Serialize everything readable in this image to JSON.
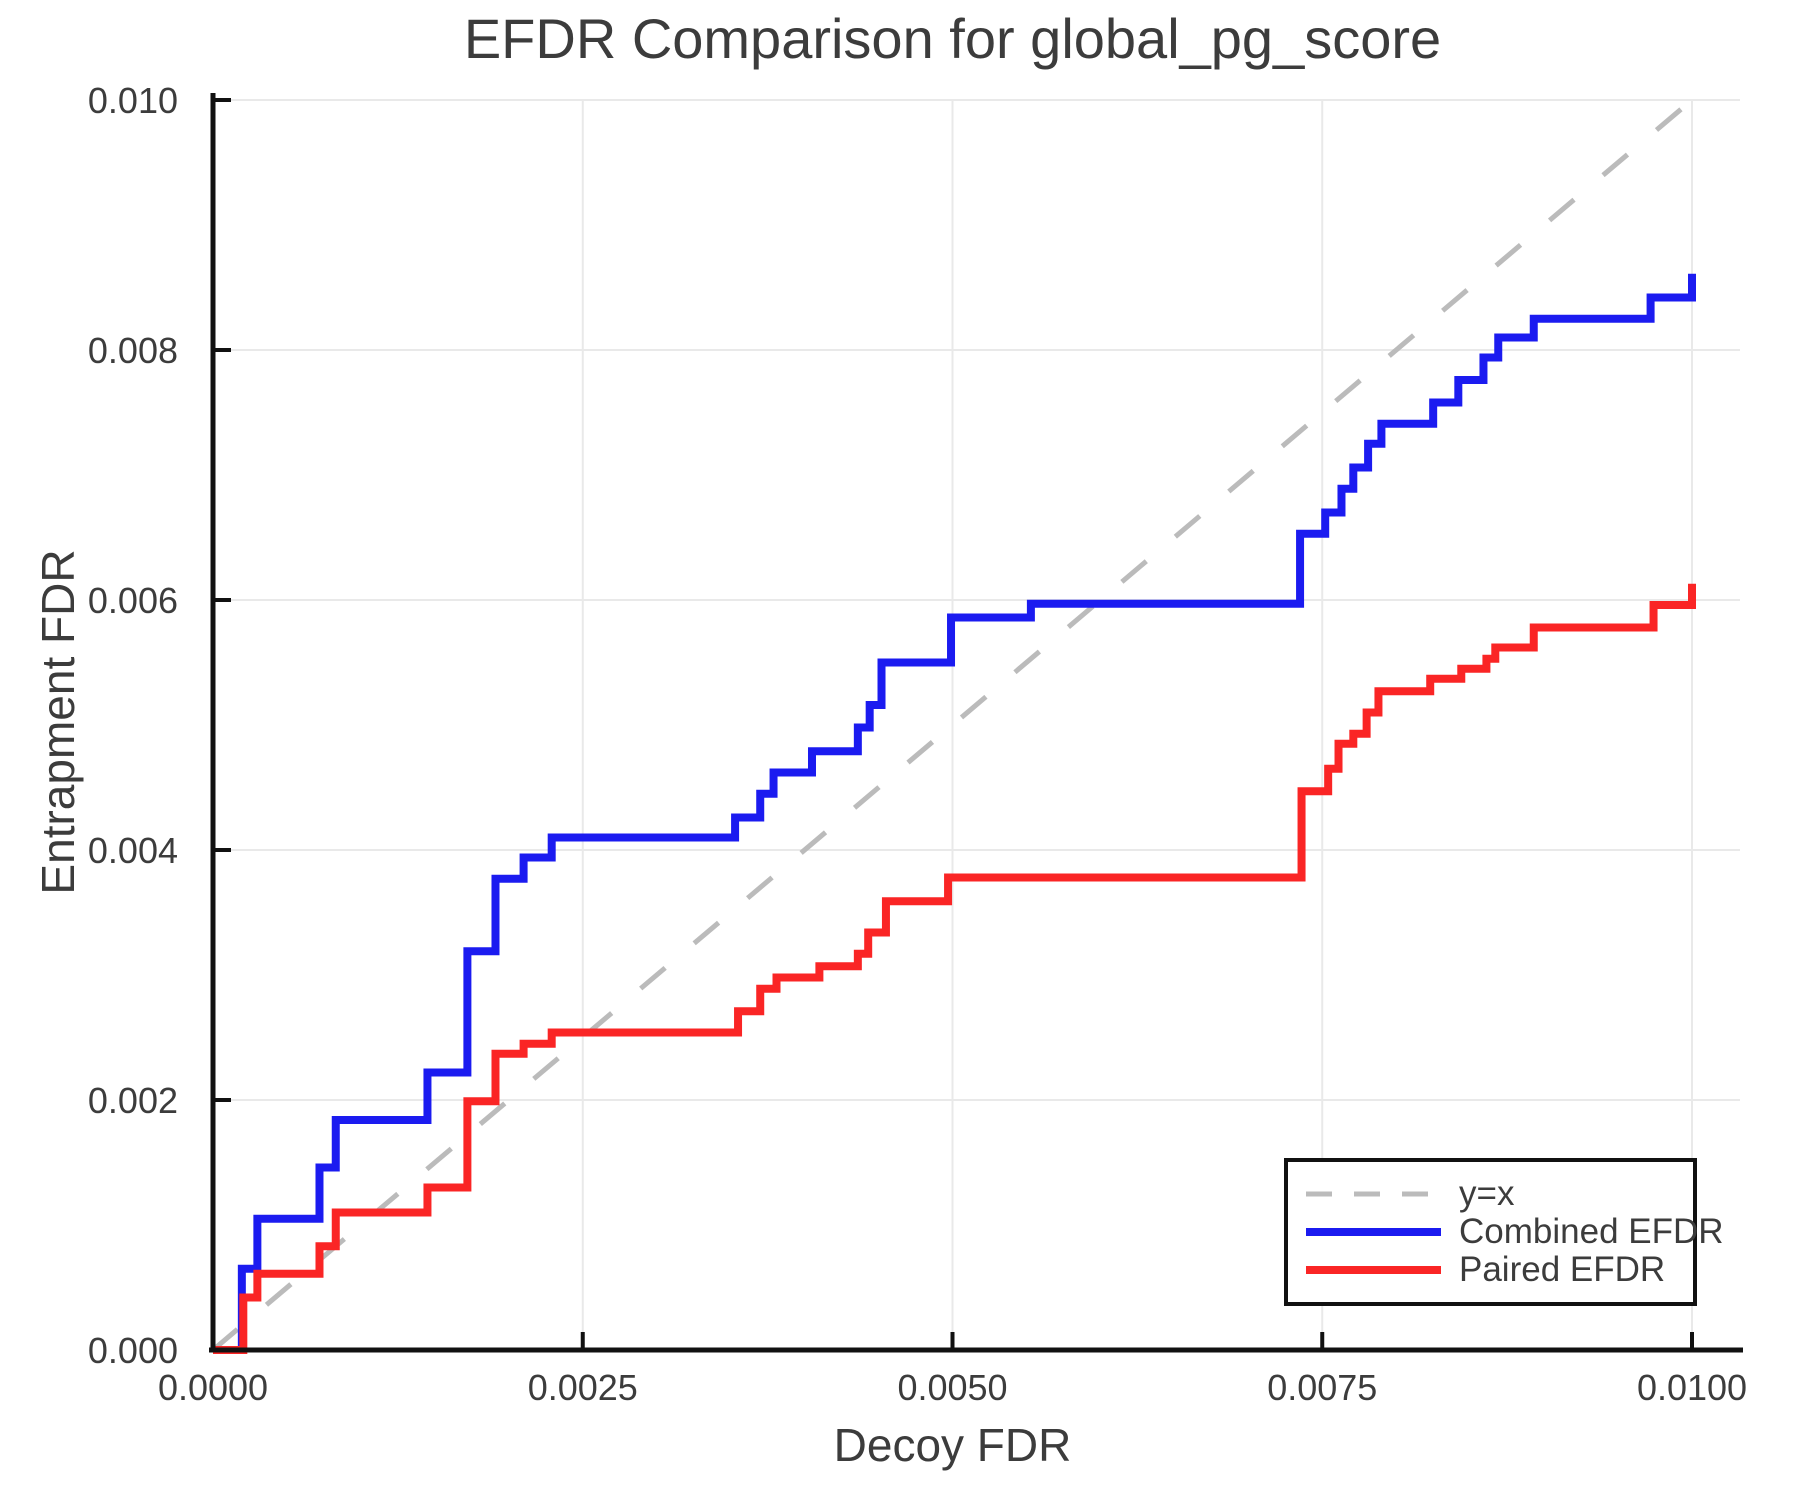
{
  "chart_data": {
    "type": "line",
    "title": "EFDR Comparison for global_pg_score",
    "xlabel": "Decoy FDR",
    "ylabel": "Entrapment FDR",
    "xlim": [
      0,
      0.01
    ],
    "ylim": [
      0,
      0.01
    ],
    "grid": true,
    "legend_position": "lower right",
    "xticks": {
      "values": [
        0.0,
        0.0025,
        0.005,
        0.0075,
        0.01
      ],
      "labels": [
        "0.0000",
        "0.0025",
        "0.0050",
        "0.0075",
        "0.0100"
      ]
    },
    "yticks": {
      "values": [
        0.0,
        0.002,
        0.004,
        0.006,
        0.008,
        0.01
      ],
      "labels": [
        "0.000",
        "0.002",
        "0.004",
        "0.006",
        "0.008",
        "0.010"
      ]
    },
    "colors": {
      "grid": "#e9e9e9",
      "spine": "#111111",
      "tick": "#111111",
      "text": "#3c3c3c",
      "identity": "#bbbbbb",
      "combined": "#1b1bf0",
      "paired": "#fa2525"
    },
    "series": [
      {
        "name": "y=x",
        "style": "dashed",
        "step": false,
        "color_key": "identity",
        "stroke_width": 5,
        "dash": "32 38",
        "points": [
          [
            0,
            0
          ],
          [
            0.01,
            0.01
          ]
        ]
      },
      {
        "name": "Combined EFDR",
        "style": "solid",
        "step": true,
        "color_key": "combined",
        "stroke_width": 8,
        "dash": "",
        "points": [
          [
            0,
            0
          ],
          [
            0.000195,
            0.00065
          ],
          [
            0.0003,
            0.00105
          ],
          [
            0.00072,
            0.00146
          ],
          [
            0.00083,
            0.00184
          ],
          [
            0.00145,
            0.00222
          ],
          [
            0.00172,
            0.00319
          ],
          [
            0.00191,
            0.00377
          ],
          [
            0.0021,
            0.00394
          ],
          [
            0.00229,
            0.0041
          ],
          [
            0.00353,
            0.00426
          ],
          [
            0.0037,
            0.00445
          ],
          [
            0.00379,
            0.00462
          ],
          [
            0.00405,
            0.00479
          ],
          [
            0.00436,
            0.00498
          ],
          [
            0.00444,
            0.00516
          ],
          [
            0.00452,
            0.0055
          ],
          [
            0.00499,
            0.00586
          ],
          [
            0.00553,
            0.00597
          ],
          [
            0.00735,
            0.00653
          ],
          [
            0.00752,
            0.0067
          ],
          [
            0.00763,
            0.00689
          ],
          [
            0.00771,
            0.00706
          ],
          [
            0.00781,
            0.00725
          ],
          [
            0.0079,
            0.00741
          ],
          [
            0.00825,
            0.00758
          ],
          [
            0.00842,
            0.00776
          ],
          [
            0.00859,
            0.00794
          ],
          [
            0.00869,
            0.0081
          ],
          [
            0.00893,
            0.00825
          ],
          [
            0.00972,
            0.00842
          ],
          [
            0.01,
            0.00861
          ]
        ]
      },
      {
        "name": "Paired EFDR",
        "style": "solid",
        "step": true,
        "color_key": "paired",
        "stroke_width": 8,
        "dash": "",
        "points": [
          [
            0,
            0
          ],
          [
            0.000205,
            0.00042
          ],
          [
            0.0003,
            0.00061
          ],
          [
            0.00072,
            0.00083
          ],
          [
            0.00083,
            0.0011
          ],
          [
            0.00145,
            0.0013
          ],
          [
            0.00172,
            0.00199
          ],
          [
            0.00191,
            0.00237
          ],
          [
            0.0021,
            0.00245
          ],
          [
            0.00229,
            0.00254
          ],
          [
            0.00355,
            0.00271
          ],
          [
            0.0037,
            0.00289
          ],
          [
            0.00381,
            0.00298
          ],
          [
            0.0041,
            0.00307
          ],
          [
            0.00436,
            0.00317
          ],
          [
            0.00443,
            0.00334
          ],
          [
            0.00455,
            0.00359
          ],
          [
            0.00497,
            0.00378
          ],
          [
            0.00736,
            0.00447
          ],
          [
            0.00754,
            0.00465
          ],
          [
            0.00761,
            0.00485
          ],
          [
            0.00771,
            0.00493
          ],
          [
            0.0078,
            0.0051
          ],
          [
            0.00788,
            0.00527
          ],
          [
            0.00823,
            0.00537
          ],
          [
            0.00844,
            0.00545
          ],
          [
            0.00861,
            0.00553
          ],
          [
            0.00867,
            0.00562
          ],
          [
            0.00893,
            0.00578
          ],
          [
            0.00974,
            0.00596
          ],
          [
            0.01,
            0.00613
          ]
        ]
      }
    ]
  }
}
